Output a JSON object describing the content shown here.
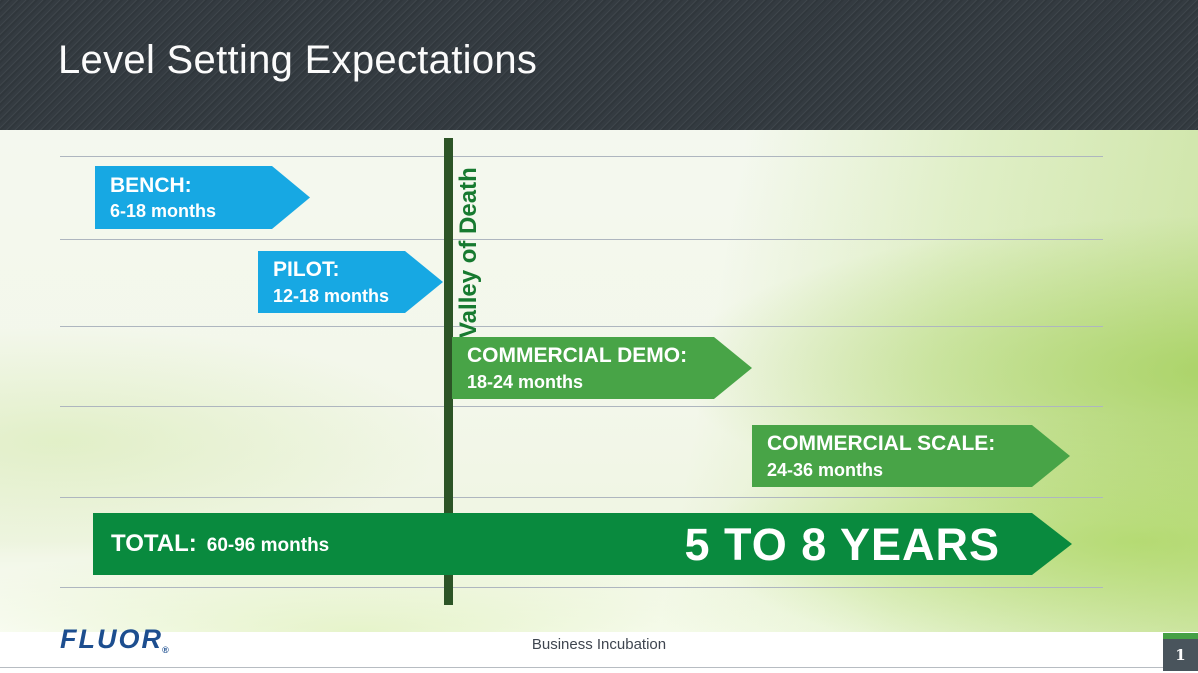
{
  "header": {
    "title": "Level Setting Expectations"
  },
  "diagram": {
    "valley_label": "Valley of Death",
    "stages": [
      {
        "name": "bench",
        "label": "BENCH:",
        "duration": "6-18 months",
        "color": "#17a8e3"
      },
      {
        "name": "pilot",
        "label": "PILOT:",
        "duration": "12-18 months",
        "color": "#17a8e3"
      },
      {
        "name": "commercial-demo",
        "label": "COMMERCIAL DEMO:",
        "duration": "18-24 months",
        "color": "#48a447"
      },
      {
        "name": "commercial-scale",
        "label": "COMMERCIAL SCALE:",
        "duration": "24-36 months",
        "color": "#48a447"
      }
    ],
    "total": {
      "label": "TOTAL:",
      "duration": "60-96 months",
      "highlight": "5 TO 8 YEARS",
      "color": "#098a3e"
    }
  },
  "footer": {
    "logo_text": "FLUOR",
    "registered_mark": "®",
    "center_text": "Business Incubation",
    "page_number": "1"
  },
  "colors": {
    "header_bg": "#343b41",
    "stage_blue": "#17a8e3",
    "stage_green": "#48a447",
    "total_green": "#098a3e",
    "valley_line": "#2c5426",
    "valley_text": "#177a30",
    "gridline": "#aeb6bf",
    "fluor_blue": "#1d4e8f",
    "page_tab_bg": "#49545c",
    "page_tab_accent": "#45a045"
  }
}
